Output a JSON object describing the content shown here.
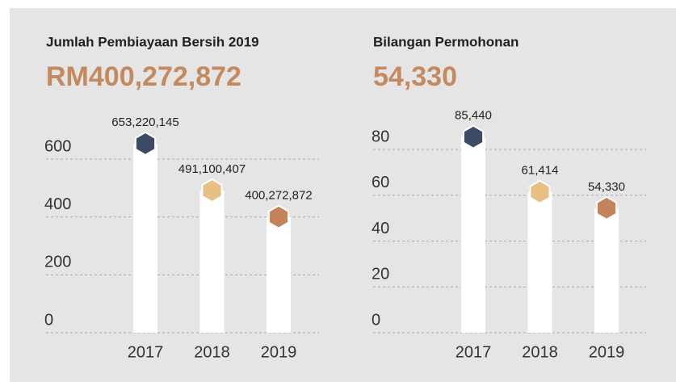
{
  "chart_data": [
    {
      "type": "bar",
      "title": "Jumlah Pembiayaan Bersih 2019",
      "subtitle": "RM400,272,872",
      "categories": [
        "2017",
        "2018",
        "2019"
      ],
      "values": [
        653.220145,
        491.100407,
        400.272872
      ],
      "value_labels": [
        "653,220,145",
        "491,100,407",
        "400,272,872"
      ],
      "colors": [
        "#3d4a63",
        "#e8c083",
        "#c4845a"
      ],
      "bar_color": "#ffffff",
      "ylim": [
        0,
        600
      ],
      "yticks": [
        0,
        200,
        400,
        600
      ],
      "grid": true
    },
    {
      "type": "bar",
      "title": "Bilangan Permohonan",
      "subtitle": "54,330",
      "categories": [
        "2017",
        "2018",
        "2019"
      ],
      "values": [
        85.44,
        61.414,
        54.33
      ],
      "value_labels": [
        "85,440",
        "61,414",
        "54,330"
      ],
      "colors": [
        "#3d4a63",
        "#e8c083",
        "#c4845a"
      ],
      "bar_color": "#ffffff",
      "ylim": [
        0,
        80
      ],
      "yticks": [
        0,
        20,
        40,
        60,
        80
      ],
      "grid": true
    }
  ]
}
